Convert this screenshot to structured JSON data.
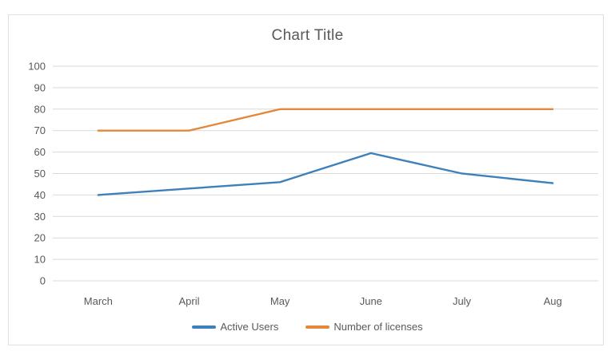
{
  "chart_data": {
    "type": "line",
    "title": "Chart Title",
    "categories": [
      "March",
      "April",
      "May",
      "June",
      "July",
      "Aug"
    ],
    "series": [
      {
        "name": "Active Users",
        "color": "#3E80B9",
        "values": [
          40,
          43,
          46,
          59.5,
          50,
          45.5
        ]
      },
      {
        "name": "Number of licenses",
        "color": "#E2883A",
        "values": [
          70,
          70,
          80,
          80,
          80,
          80
        ]
      }
    ],
    "xlabel": "",
    "ylabel": "",
    "ylim": [
      0,
      100
    ],
    "yticks": [
      0,
      10,
      20,
      30,
      40,
      50,
      60,
      70,
      80,
      90,
      100
    ],
    "grid": "horizontal",
    "legend_position": "bottom"
  },
  "colors": {
    "background": "#FFFFFF",
    "chart_border": "#E0E0E0",
    "gridline": "#D9D9D9",
    "text": "#595959"
  }
}
